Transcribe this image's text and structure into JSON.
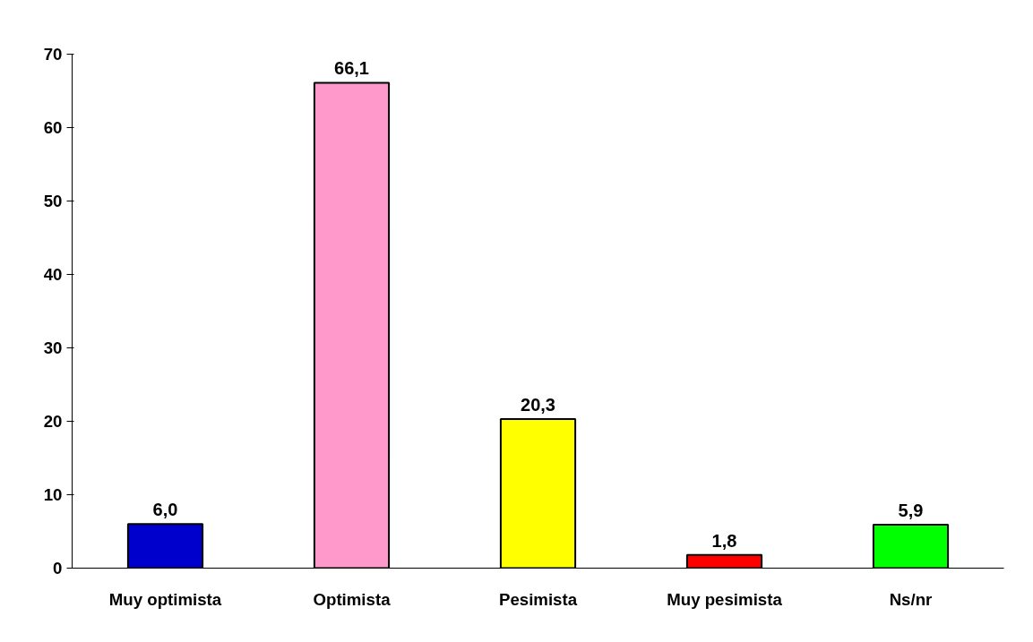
{
  "chart_data": {
    "type": "bar",
    "categories": [
      "Muy optimista",
      "Optimista",
      "Pesimista",
      "Muy pesimista",
      "Ns/nr"
    ],
    "values": [
      6.0,
      66.1,
      20.3,
      1.8,
      5.9
    ],
    "colors": [
      "#0000cc",
      "#ff99cc",
      "#ffff00",
      "#ff0000",
      "#00ff00"
    ],
    "value_labels": [
      "6,0",
      "66,1",
      "20,3",
      "1,8",
      "5,9"
    ],
    "ylim": [
      0,
      70
    ],
    "yticks": [
      0,
      10,
      20,
      30,
      40,
      50,
      60,
      70
    ],
    "grid": false
  }
}
